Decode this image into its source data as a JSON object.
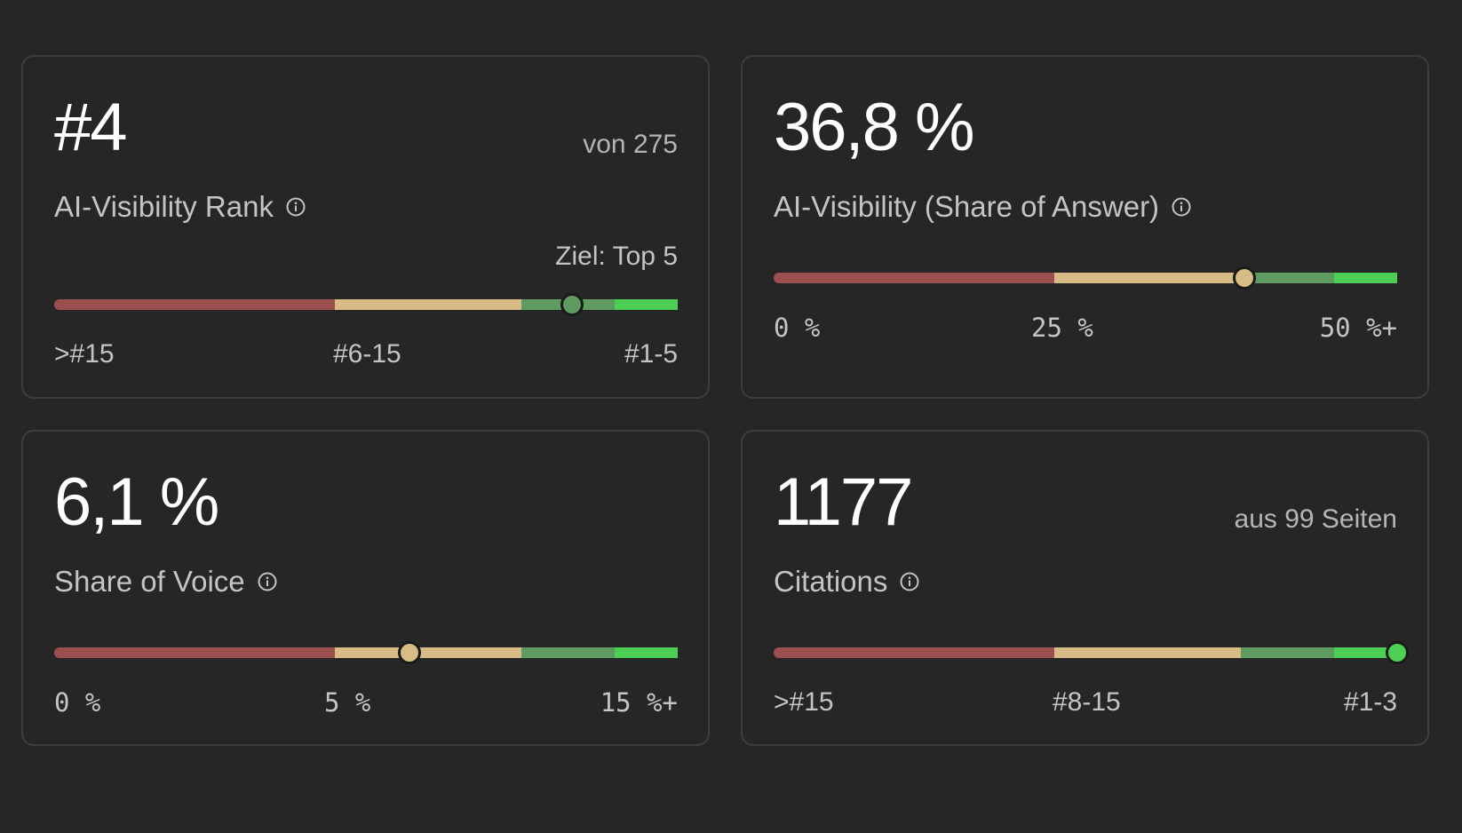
{
  "colors": {
    "background": "#262626",
    "card_border": "#3d3d3d",
    "red": "#9b5050",
    "beige": "#d8bc86",
    "dark_green": "#5f9a61",
    "bright_green": "#4dcf56"
  },
  "cards": {
    "rank": {
      "value": "#4",
      "aside": "von 275",
      "label": "AI-Visibility Rank",
      "goal": "Ziel: Top 5",
      "ticks": [
        ">#15",
        "#6-15",
        "#1-5"
      ],
      "marker_fraction": 0.83
    },
    "share_of_answer": {
      "value": "36,8 %",
      "label": "AI-Visibility (Share of Answer)",
      "ticks": [
        "0 %",
        "25 %",
        "50 %+"
      ],
      "marker_fraction": 0.755
    },
    "share_of_voice": {
      "value": "6,1 %",
      "label": "Share of Voice",
      "ticks": [
        "0 %",
        "5 %",
        "15 %+"
      ],
      "marker_fraction": 0.57
    },
    "citations": {
      "value": "1177",
      "aside": "aus 99 Seiten",
      "label": "Citations",
      "ticks": [
        ">#15",
        "#8-15",
        "#1-3"
      ],
      "marker_fraction": 1.0
    }
  }
}
